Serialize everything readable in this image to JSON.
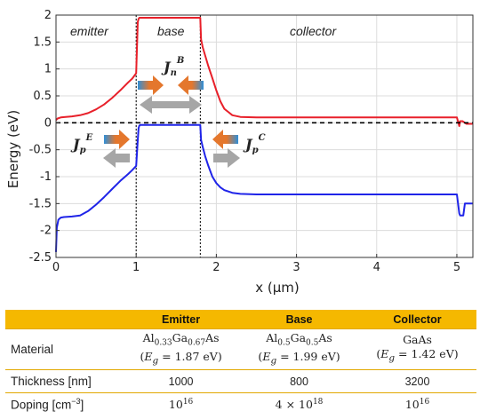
{
  "chart_data": {
    "type": "line",
    "xlabel": "x (μm)",
    "ylabel": "Energy (eV)",
    "xlim": [
      0,
      5.2
    ],
    "ylim": [
      -2.5,
      2
    ],
    "xticks": [
      0,
      1,
      2,
      3,
      4,
      5
    ],
    "yticks": [
      2,
      1.5,
      1,
      0.5,
      0,
      -0.5,
      -1,
      -1.5,
      -2,
      -2.5
    ],
    "grid": true,
    "regions": [
      "emitter",
      "base",
      "collector"
    ],
    "region_boundaries": [
      1.0,
      1.8
    ],
    "fermi_level": 0,
    "series": [
      {
        "color": "#e8202a",
        "x": [
          0.0,
          0.02,
          0.06,
          0.12,
          0.2,
          0.3,
          0.4,
          0.5,
          0.6,
          0.7,
          0.8,
          0.9,
          0.95,
          1.0,
          1.02,
          1.03,
          1.04,
          1.05,
          1.8,
          1.81,
          1.83,
          1.86,
          1.9,
          1.95,
          2.0,
          2.05,
          2.1,
          2.2,
          2.3,
          2.5,
          3.0,
          4.0,
          5.0,
          5.03,
          5.04,
          5.07,
          5.1,
          5.12,
          5.2
        ],
        "y": [
          0.05,
          0.08,
          0.1,
          0.11,
          0.12,
          0.14,
          0.18,
          0.25,
          0.34,
          0.46,
          0.6,
          0.75,
          0.82,
          0.92,
          1.87,
          1.93,
          1.95,
          1.95,
          1.95,
          1.55,
          1.4,
          1.25,
          1.05,
          0.83,
          0.6,
          0.4,
          0.26,
          0.14,
          0.11,
          0.1,
          0.1,
          0.1,
          0.1,
          -0.06,
          0.03,
          0.03,
          0.0,
          -0.02,
          -0.02
        ]
      },
      {
        "color": "#1f24e8",
        "x": [
          0.0,
          0.01,
          0.03,
          0.06,
          0.1,
          0.2,
          0.3,
          0.4,
          0.5,
          0.6,
          0.7,
          0.8,
          0.9,
          0.95,
          1.0,
          1.02,
          1.03,
          1.04,
          1.05,
          1.8,
          1.81,
          1.83,
          1.86,
          1.9,
          1.95,
          2.0,
          2.05,
          2.1,
          2.2,
          2.3,
          2.5,
          3.0,
          4.0,
          5.0,
          5.03,
          5.04,
          5.08,
          5.1,
          5.2
        ],
        "y": [
          -2.4,
          -1.95,
          -1.8,
          -1.76,
          -1.75,
          -1.74,
          -1.72,
          -1.64,
          -1.52,
          -1.38,
          -1.23,
          -1.08,
          -0.95,
          -0.88,
          -0.8,
          -0.32,
          -0.1,
          -0.05,
          -0.04,
          -0.04,
          -0.32,
          -0.45,
          -0.62,
          -0.8,
          -1.0,
          -1.12,
          -1.2,
          -1.25,
          -1.3,
          -1.32,
          -1.33,
          -1.33,
          -1.33,
          -1.33,
          -1.68,
          -1.72,
          -1.72,
          -1.5,
          -1.5
        ]
      },
      {
        "color": "#000000",
        "style": "dashed",
        "x": [
          0,
          5.2
        ],
        "y": [
          0,
          0
        ]
      }
    ],
    "annotations": [
      {
        "name": "Jn",
        "sub": "n",
        "sup": "B"
      },
      {
        "name": "Jp",
        "sub": "p",
        "sup": "E"
      },
      {
        "name": "Jp",
        "sub": "p",
        "sup": "C"
      }
    ]
  },
  "table": {
    "headers": [
      "",
      "Emitter",
      "Base",
      "Collector"
    ],
    "rows": {
      "material": {
        "label": "Material",
        "emitter": {
          "el1": "Al",
          "s1": "0.33",
          "el2": "Ga",
          "s2": "0.67",
          "el3": "As",
          "eg": "1.87 eV"
        },
        "base": {
          "el1": "Al",
          "s1": "0.5",
          "el2": "Ga",
          "s2": "0.5",
          "el3": "As",
          "eg": "1.99 eV"
        },
        "collector": {
          "name": "GaAs",
          "eg": "1.42 eV"
        }
      },
      "thickness": {
        "label": "Thickness [nm]",
        "values": [
          "1000",
          "800",
          "3200"
        ]
      },
      "doping": {
        "label_pre": "Doping [cm",
        "label_exp": "−3",
        "label_post": "]",
        "emitter": {
          "base": "10",
          "exp": "16"
        },
        "base": {
          "prefix": "4 × 10",
          "exp": "18"
        },
        "collector": {
          "base": "10",
          "exp": "16"
        }
      }
    }
  }
}
